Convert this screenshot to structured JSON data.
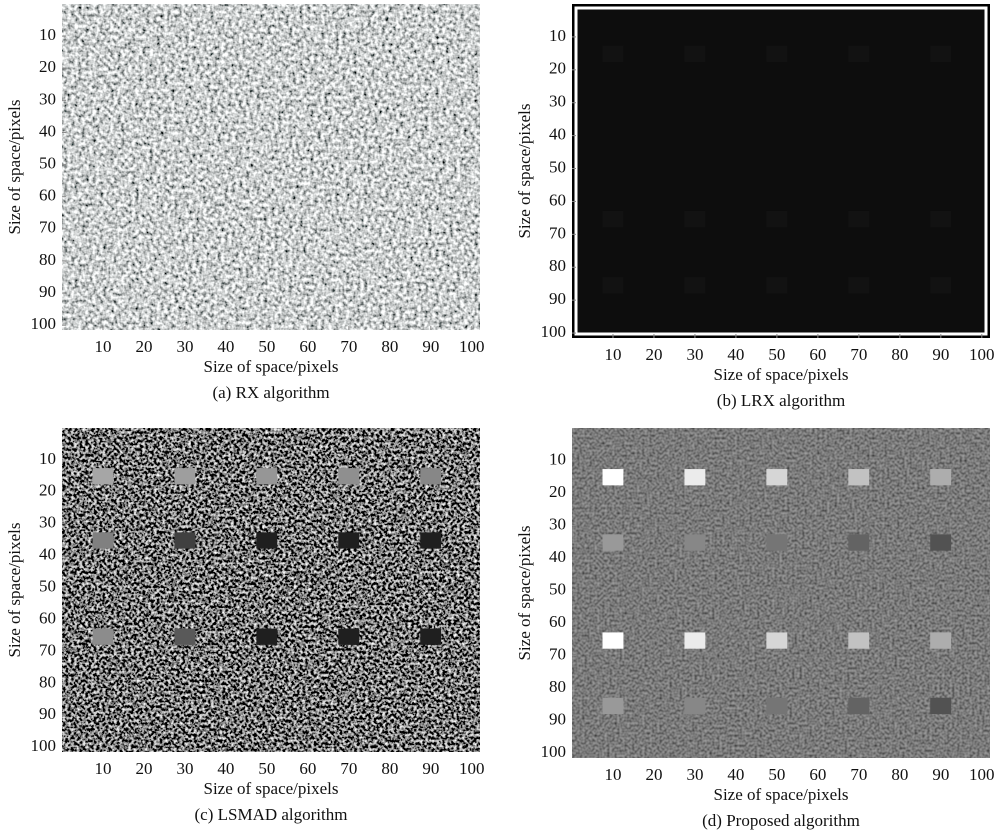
{
  "chart_data": [
    {
      "type": "image",
      "style": "rx",
      "xlabel": "Size of space/pixels",
      "ylabel": "Size of space/pixels",
      "caption": "(a)  RX algorithm",
      "xlim": [
        0,
        102
      ],
      "ylim": [
        101.5,
        0
      ],
      "xticks": [
        10,
        20,
        30,
        40,
        50,
        60,
        70,
        80,
        90,
        100
      ],
      "yticks": [
        10,
        20,
        30,
        40,
        50,
        60,
        70,
        80,
        90,
        100
      ]
    },
    {
      "type": "image",
      "style": "lrx",
      "xlabel": "Size of space/pixels",
      "ylabel": "Size of space/pixels",
      "caption": "(b)  LRX algorithm",
      "xlim": [
        0,
        102
      ],
      "ylim": [
        101.5,
        0
      ],
      "xticks": [
        10,
        20,
        30,
        40,
        50,
        60,
        70,
        80,
        90,
        100
      ],
      "yticks": [
        10,
        20,
        30,
        40,
        50,
        60,
        70,
        80,
        90,
        100
      ]
    },
    {
      "type": "image",
      "style": "lsmad",
      "xlabel": "Size of space/pixels",
      "ylabel": "Size of space/pixels",
      "caption": "(c)  LSMAD algorithm",
      "xlim": [
        0,
        102
      ],
      "ylim": [
        101.5,
        0
      ],
      "xticks": [
        10,
        20,
        30,
        40,
        50,
        60,
        70,
        80,
        90,
        100
      ],
      "yticks": [
        10,
        20,
        30,
        40,
        50,
        60,
        70,
        80,
        90,
        100
      ]
    },
    {
      "type": "image",
      "style": "proposed",
      "xlabel": "Size of space/pixels",
      "ylabel": "Size of space/pixels",
      "caption": "(d)  Proposed algorithm",
      "xlim": [
        0,
        102
      ],
      "ylim": [
        101.5,
        0
      ],
      "xticks": [
        10,
        20,
        30,
        40,
        50,
        60,
        70,
        80,
        90,
        100
      ],
      "yticks": [
        10,
        20,
        30,
        40,
        50,
        60,
        70,
        80,
        90,
        100
      ]
    }
  ]
}
